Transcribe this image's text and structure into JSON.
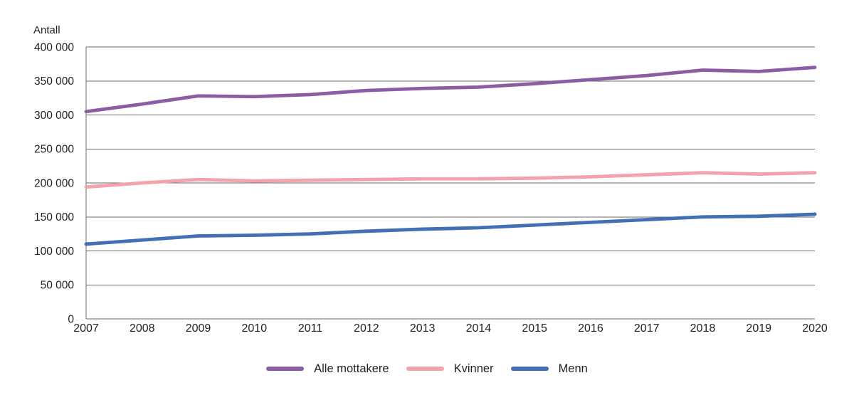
{
  "chart_data": {
    "type": "line",
    "title": "",
    "ylabel": "Antall",
    "xlabel": "",
    "categories": [
      "2007",
      "2008",
      "2009",
      "2010",
      "2011",
      "2012",
      "2013",
      "2014",
      "2015",
      "2016",
      "2017",
      "2018",
      "2019",
      "2020"
    ],
    "series": [
      {
        "name": "Alle mottakere",
        "color": "#8a5da4",
        "values": [
          305000,
          316000,
          328000,
          327000,
          330000,
          336000,
          339000,
          341000,
          346000,
          352000,
          358000,
          366000,
          364000,
          370000
        ]
      },
      {
        "name": "Kvinner",
        "color": "#f2a3ab",
        "values": [
          194000,
          200000,
          205000,
          203000,
          204000,
          205000,
          206000,
          206000,
          207000,
          209000,
          212000,
          215000,
          213000,
          215000
        ]
      },
      {
        "name": "Menn",
        "color": "#4170b4",
        "values": [
          110000,
          116000,
          122000,
          123000,
          125000,
          129000,
          132000,
          134000,
          138000,
          142000,
          146000,
          150000,
          151000,
          154000
        ]
      }
    ],
    "ylim": [
      0,
      400000
    ],
    "ytick_step": 50000,
    "ytick_labels": [
      "0",
      "50 000",
      "100 000",
      "150 000",
      "200 000",
      "250 000",
      "300 000",
      "350 000",
      "400 000"
    ],
    "grid": true,
    "legend_position": "bottom",
    "colors": {
      "gridline": "#6a6a6a",
      "axis": "#6a6a6a",
      "text": "#231f20",
      "background": "#ffffff"
    }
  }
}
